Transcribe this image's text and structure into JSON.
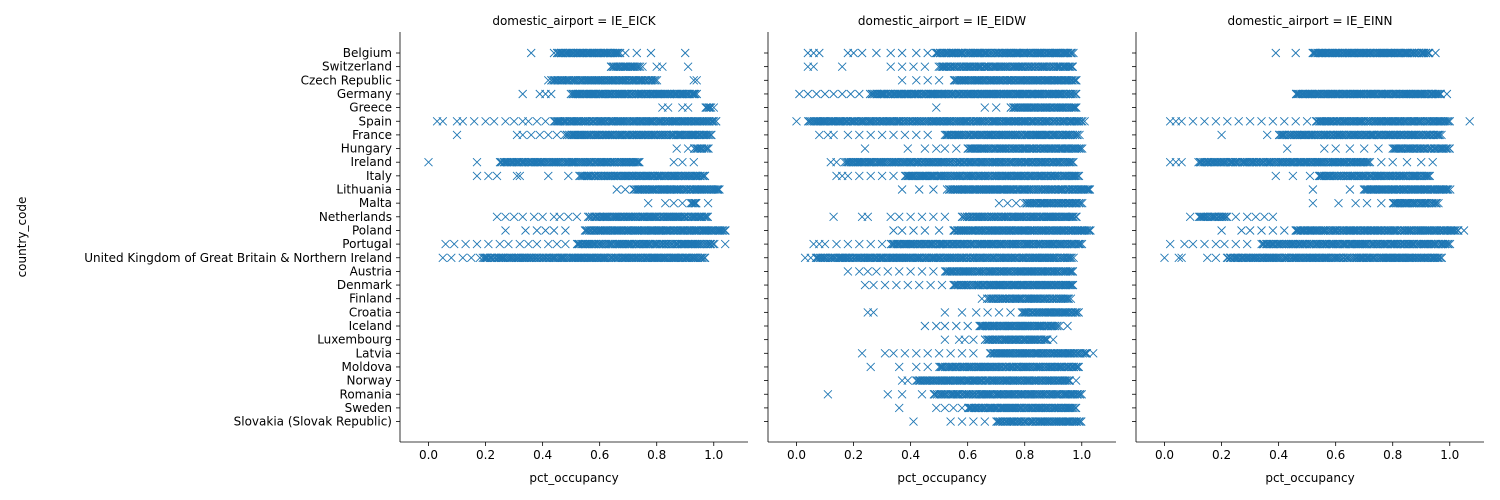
{
  "chart_data": {
    "type": "scatter",
    "marker": "x",
    "marker_color": "#1f77b4",
    "facet_variable": "domestic_airport",
    "xlabel": "pct_occupancy",
    "ylabel": "country_code",
    "xlim": [
      -0.1,
      1.12
    ],
    "xticks": [
      0.0,
      0.2,
      0.4,
      0.6,
      0.8,
      1.0
    ],
    "xtick_labels": [
      "0.0",
      "0.2",
      "0.4",
      "0.6",
      "0.8",
      "1.0"
    ],
    "grid": false,
    "categories": [
      "Belgium",
      "Switzerland",
      "Czech Republic",
      "Germany",
      "Greece",
      "Spain",
      "France",
      "Hungary",
      "Ireland",
      "Italy",
      "Lithuania",
      "Malta",
      "Netherlands",
      "Poland",
      "Portugal",
      "United Kingdom of Great Britain & Northern Ireland",
      "Austria",
      "Denmark",
      "Finland",
      "Croatia",
      "Iceland",
      "Luxembourg",
      "Latvia",
      "Moldova",
      "Norway",
      "Romania",
      "Sweden",
      "Slovakia (Slovak Republic)"
    ],
    "panels": [
      {
        "title": "domestic_airport = IE_EICK",
        "series": [
          {
            "category": "Belgium",
            "dense": [
              0.45,
              0.67
            ],
            "outliers": [
              0.36,
              0.44,
              0.69,
              0.73,
              0.78,
              0.9
            ]
          },
          {
            "category": "Switzerland",
            "dense": [
              0.64,
              0.74
            ],
            "outliers": [
              0.65,
              0.69,
              0.75,
              0.8,
              0.82,
              0.91
            ]
          },
          {
            "category": "Czech Republic",
            "dense": [
              0.43,
              0.8
            ],
            "outliers": [
              0.42,
              0.62,
              0.93,
              0.94
            ]
          },
          {
            "category": "Germany",
            "dense": [
              0.5,
              0.94
            ],
            "outliers": [
              0.33,
              0.39,
              0.41,
              0.43
            ]
          },
          {
            "category": "Greece",
            "dense": [
              0.97,
              0.99
            ],
            "outliers": [
              0.82,
              0.84,
              0.89,
              0.91,
              1.0
            ]
          },
          {
            "category": "Spain",
            "dense": [
              0.44,
              1.01
            ],
            "outliers": [
              0.03,
              0.05,
              0.1,
              0.12,
              0.16,
              0.2,
              0.23,
              0.27,
              0.3,
              0.33,
              0.35,
              0.38,
              0.41
            ]
          },
          {
            "category": "France",
            "dense": [
              0.48,
              0.99
            ],
            "outliers": [
              0.1,
              0.31,
              0.33,
              0.36,
              0.39,
              0.42,
              0.45
            ]
          },
          {
            "category": "Hungary",
            "dense": [
              0.93,
              0.98
            ],
            "outliers": [
              0.87,
              0.91
            ]
          },
          {
            "category": "Ireland",
            "dense": [
              0.25,
              0.74
            ],
            "outliers": [
              0.0,
              0.17,
              0.86,
              0.89,
              0.93
            ]
          },
          {
            "category": "Italy",
            "dense": [
              0.53,
              0.97
            ],
            "outliers": [
              0.17,
              0.21,
              0.24,
              0.31,
              0.32,
              0.42,
              0.49
            ]
          },
          {
            "category": "Lithuania",
            "dense": [
              0.72,
              1.02
            ],
            "outliers": [
              0.66,
              0.69
            ]
          },
          {
            "category": "Malta",
            "dense": [
              0.92,
              0.94
            ],
            "outliers": [
              0.77,
              0.83,
              0.86,
              0.89,
              0.98
            ]
          },
          {
            "category": "Netherlands",
            "dense": [
              0.56,
              0.98
            ],
            "outliers": [
              0.24,
              0.27,
              0.3,
              0.33,
              0.37,
              0.4,
              0.44,
              0.46,
              0.49,
              0.52
            ]
          },
          {
            "category": "Poland",
            "dense": [
              0.55,
              1.04
            ],
            "outliers": [
              0.27,
              0.34,
              0.38,
              0.41,
              0.44,
              0.48
            ]
          },
          {
            "category": "Portugal",
            "dense": [
              0.52,
              1.0
            ],
            "outliers": [
              0.06,
              0.09,
              0.13,
              0.17,
              0.21,
              0.25,
              0.28,
              0.32,
              0.35,
              0.38,
              0.42,
              0.45,
              0.48,
              1.04
            ]
          },
          {
            "category": "United Kingdom of Great Britain & Northern Ireland",
            "dense": [
              0.19,
              0.97
            ],
            "outliers": [
              0.05,
              0.08,
              0.12,
              0.15,
              0.18
            ]
          }
        ]
      },
      {
        "title": "domestic_airport = IE_EIDW",
        "series": [
          {
            "category": "Belgium",
            "dense": [
              0.49,
              0.97
            ],
            "outliers": [
              0.04,
              0.06,
              0.08,
              0.18,
              0.2,
              0.23,
              0.28,
              0.33,
              0.37,
              0.42,
              0.46
            ]
          },
          {
            "category": "Switzerland",
            "dense": [
              0.5,
              0.97
            ],
            "outliers": [
              0.04,
              0.06,
              0.16,
              0.33,
              0.37,
              0.41,
              0.45
            ]
          },
          {
            "category": "Czech Republic",
            "dense": [
              0.55,
              0.98
            ],
            "outliers": [
              0.37,
              0.42,
              0.46,
              0.5
            ]
          },
          {
            "category": "Germany",
            "dense": [
              0.26,
              0.98
            ],
            "outliers": [
              0.01,
              0.04,
              0.07,
              0.1,
              0.13,
              0.16,
              0.19,
              0.22
            ]
          },
          {
            "category": "Greece",
            "dense": [
              0.75,
              0.98
            ],
            "outliers": [
              0.49,
              0.66,
              0.7
            ]
          },
          {
            "category": "Spain",
            "dense": [
              0.04,
              1.0
            ],
            "outliers": [
              0.0,
              1.01
            ]
          },
          {
            "category": "France",
            "dense": [
              0.52,
              0.99
            ],
            "outliers": [
              0.08,
              0.11,
              0.13,
              0.18,
              0.22,
              0.26,
              0.3,
              0.34,
              0.38,
              0.42,
              0.46
            ]
          },
          {
            "category": "Hungary",
            "dense": [
              0.6,
              1.0
            ],
            "outliers": [
              0.24,
              0.39,
              0.45,
              0.49,
              0.52,
              0.56
            ]
          },
          {
            "category": "Ireland",
            "dense": [
              0.17,
              0.97
            ],
            "outliers": [
              0.12,
              0.14
            ]
          },
          {
            "category": "Italy",
            "dense": [
              0.38,
              0.99
            ],
            "outliers": [
              0.14,
              0.16,
              0.18,
              0.22,
              0.26,
              0.3,
              0.34
            ]
          },
          {
            "category": "Lithuania",
            "dense": [
              0.53,
              1.03
            ],
            "outliers": [
              0.37,
              0.43,
              0.48
            ]
          },
          {
            "category": "Malta",
            "dense": [
              0.8,
              1.0
            ],
            "outliers": [
              0.71,
              0.74,
              0.77
            ]
          },
          {
            "category": "Netherlands",
            "dense": [
              0.58,
              0.98
            ],
            "outliers": [
              0.13,
              0.23,
              0.25,
              0.33,
              0.36,
              0.4,
              0.44,
              0.48,
              0.52
            ]
          },
          {
            "category": "Poland",
            "dense": [
              0.55,
              1.03
            ],
            "outliers": [
              0.34,
              0.37,
              0.41,
              0.45,
              0.5
            ]
          },
          {
            "category": "Portugal",
            "dense": [
              0.33,
              1.0
            ],
            "outliers": [
              0.06,
              0.08,
              0.1,
              0.14,
              0.18,
              0.22,
              0.26,
              0.3
            ]
          },
          {
            "category": "United Kingdom of Great Britain & Northern Ireland",
            "dense": [
              0.07,
              0.97
            ],
            "outliers": [
              0.03,
              0.05
            ]
          },
          {
            "category": "Austria",
            "dense": [
              0.52,
              0.97
            ],
            "outliers": [
              0.18,
              0.22,
              0.25,
              0.28,
              0.32,
              0.36,
              0.4,
              0.44,
              0.48
            ]
          },
          {
            "category": "Denmark",
            "dense": [
              0.55,
              0.97
            ],
            "outliers": [
              0.24,
              0.27,
              0.31,
              0.35,
              0.39,
              0.43,
              0.47,
              0.51
            ]
          },
          {
            "category": "Finland",
            "dense": [
              0.67,
              0.96
            ],
            "outliers": [
              0.65
            ]
          },
          {
            "category": "Croatia",
            "dense": [
              0.79,
              0.99
            ],
            "outliers": [
              0.25,
              0.27,
              0.52,
              0.58,
              0.63,
              0.67,
              0.71,
              0.75
            ]
          },
          {
            "category": "Iceland",
            "dense": [
              0.64,
              0.92
            ],
            "outliers": [
              0.45,
              0.49,
              0.52,
              0.56,
              0.6,
              0.95
            ]
          },
          {
            "category": "Luxembourg",
            "dense": [
              0.66,
              0.88
            ],
            "outliers": [
              0.52,
              0.57,
              0.59,
              0.62,
              0.9
            ]
          },
          {
            "category": "Latvia",
            "dense": [
              0.68,
              1.02
            ],
            "outliers": [
              0.23,
              0.31,
              0.34,
              0.38,
              0.42,
              0.46,
              0.5,
              0.54,
              0.58,
              0.62,
              1.04
            ]
          },
          {
            "category": "Moldova",
            "dense": [
              0.5,
              0.99
            ],
            "outliers": [
              0.26,
              0.36,
              0.42,
              0.46
            ]
          },
          {
            "category": "Norway",
            "dense": [
              0.42,
              0.96
            ],
            "outliers": [
              0.37,
              0.39,
              0.98
            ]
          },
          {
            "category": "Romania",
            "dense": [
              0.48,
              1.0
            ],
            "outliers": [
              0.11,
              0.32,
              0.37,
              0.44
            ]
          },
          {
            "category": "Sweden",
            "dense": [
              0.6,
              0.98
            ],
            "outliers": [
              0.36,
              0.49,
              0.52,
              0.55,
              0.58
            ]
          },
          {
            "category": "Slovakia (Slovak Republic)",
            "dense": [
              0.7,
              1.0
            ],
            "outliers": [
              0.41,
              0.54,
              0.58,
              0.62,
              0.66
            ]
          }
        ]
      },
      {
        "title": "domestic_airport = IE_EINN",
        "series": [
          {
            "category": "Belgium",
            "dense": [
              0.52,
              0.93
            ],
            "outliers": [
              0.39,
              0.46,
              0.95
            ]
          },
          {
            "category": "Germany",
            "dense": [
              0.46,
              0.97
            ],
            "outliers": [
              0.99
            ]
          },
          {
            "category": "Spain",
            "dense": [
              0.53,
              1.0
            ],
            "outliers": [
              0.02,
              0.04,
              0.06,
              0.1,
              0.14,
              0.18,
              0.22,
              0.26,
              0.3,
              0.34,
              0.38,
              0.42,
              0.46,
              0.5,
              1.07
            ]
          },
          {
            "category": "France",
            "dense": [
              0.4,
              0.97
            ],
            "outliers": [
              0.2,
              0.36
            ]
          },
          {
            "category": "Hungary",
            "dense": [
              0.8,
              1.0
            ],
            "outliers": [
              0.43,
              0.56,
              0.6,
              0.65,
              0.7,
              0.75
            ]
          },
          {
            "category": "Ireland",
            "dense": [
              0.12,
              0.72
            ],
            "outliers": [
              0.02,
              0.04,
              0.06,
              0.76,
              0.8,
              0.85,
              0.9,
              0.94
            ]
          },
          {
            "category": "Italy",
            "dense": [
              0.54,
              0.93
            ],
            "outliers": [
              0.39,
              0.45,
              0.51
            ]
          },
          {
            "category": "Lithuania",
            "dense": [
              0.7,
              1.0
            ],
            "outliers": [
              0.52,
              0.65
            ]
          },
          {
            "category": "Malta",
            "dense": [
              0.8,
              0.96
            ],
            "outliers": [
              0.52,
              0.61,
              0.67,
              0.71,
              0.76
            ]
          },
          {
            "category": "Netherlands",
            "dense": [
              0.12,
              0.22
            ],
            "outliers": [
              0.09,
              0.25,
              0.29,
              0.32,
              0.35,
              0.38
            ]
          },
          {
            "category": "Poland",
            "dense": [
              0.46,
              1.03
            ],
            "outliers": [
              0.2,
              0.27,
              0.3,
              0.34,
              0.38,
              0.42,
              1.05
            ]
          },
          {
            "category": "Portugal",
            "dense": [
              0.34,
              1.0
            ],
            "outliers": [
              0.02,
              0.07,
              0.1,
              0.14,
              0.18,
              0.21,
              0.25,
              0.29
            ]
          },
          {
            "category": "United Kingdom of Great Britain & Northern Ireland",
            "dense": [
              0.22,
              0.97
            ],
            "outliers": [
              0.0,
              0.05,
              0.06,
              0.15,
              0.18
            ]
          }
        ]
      }
    ]
  }
}
